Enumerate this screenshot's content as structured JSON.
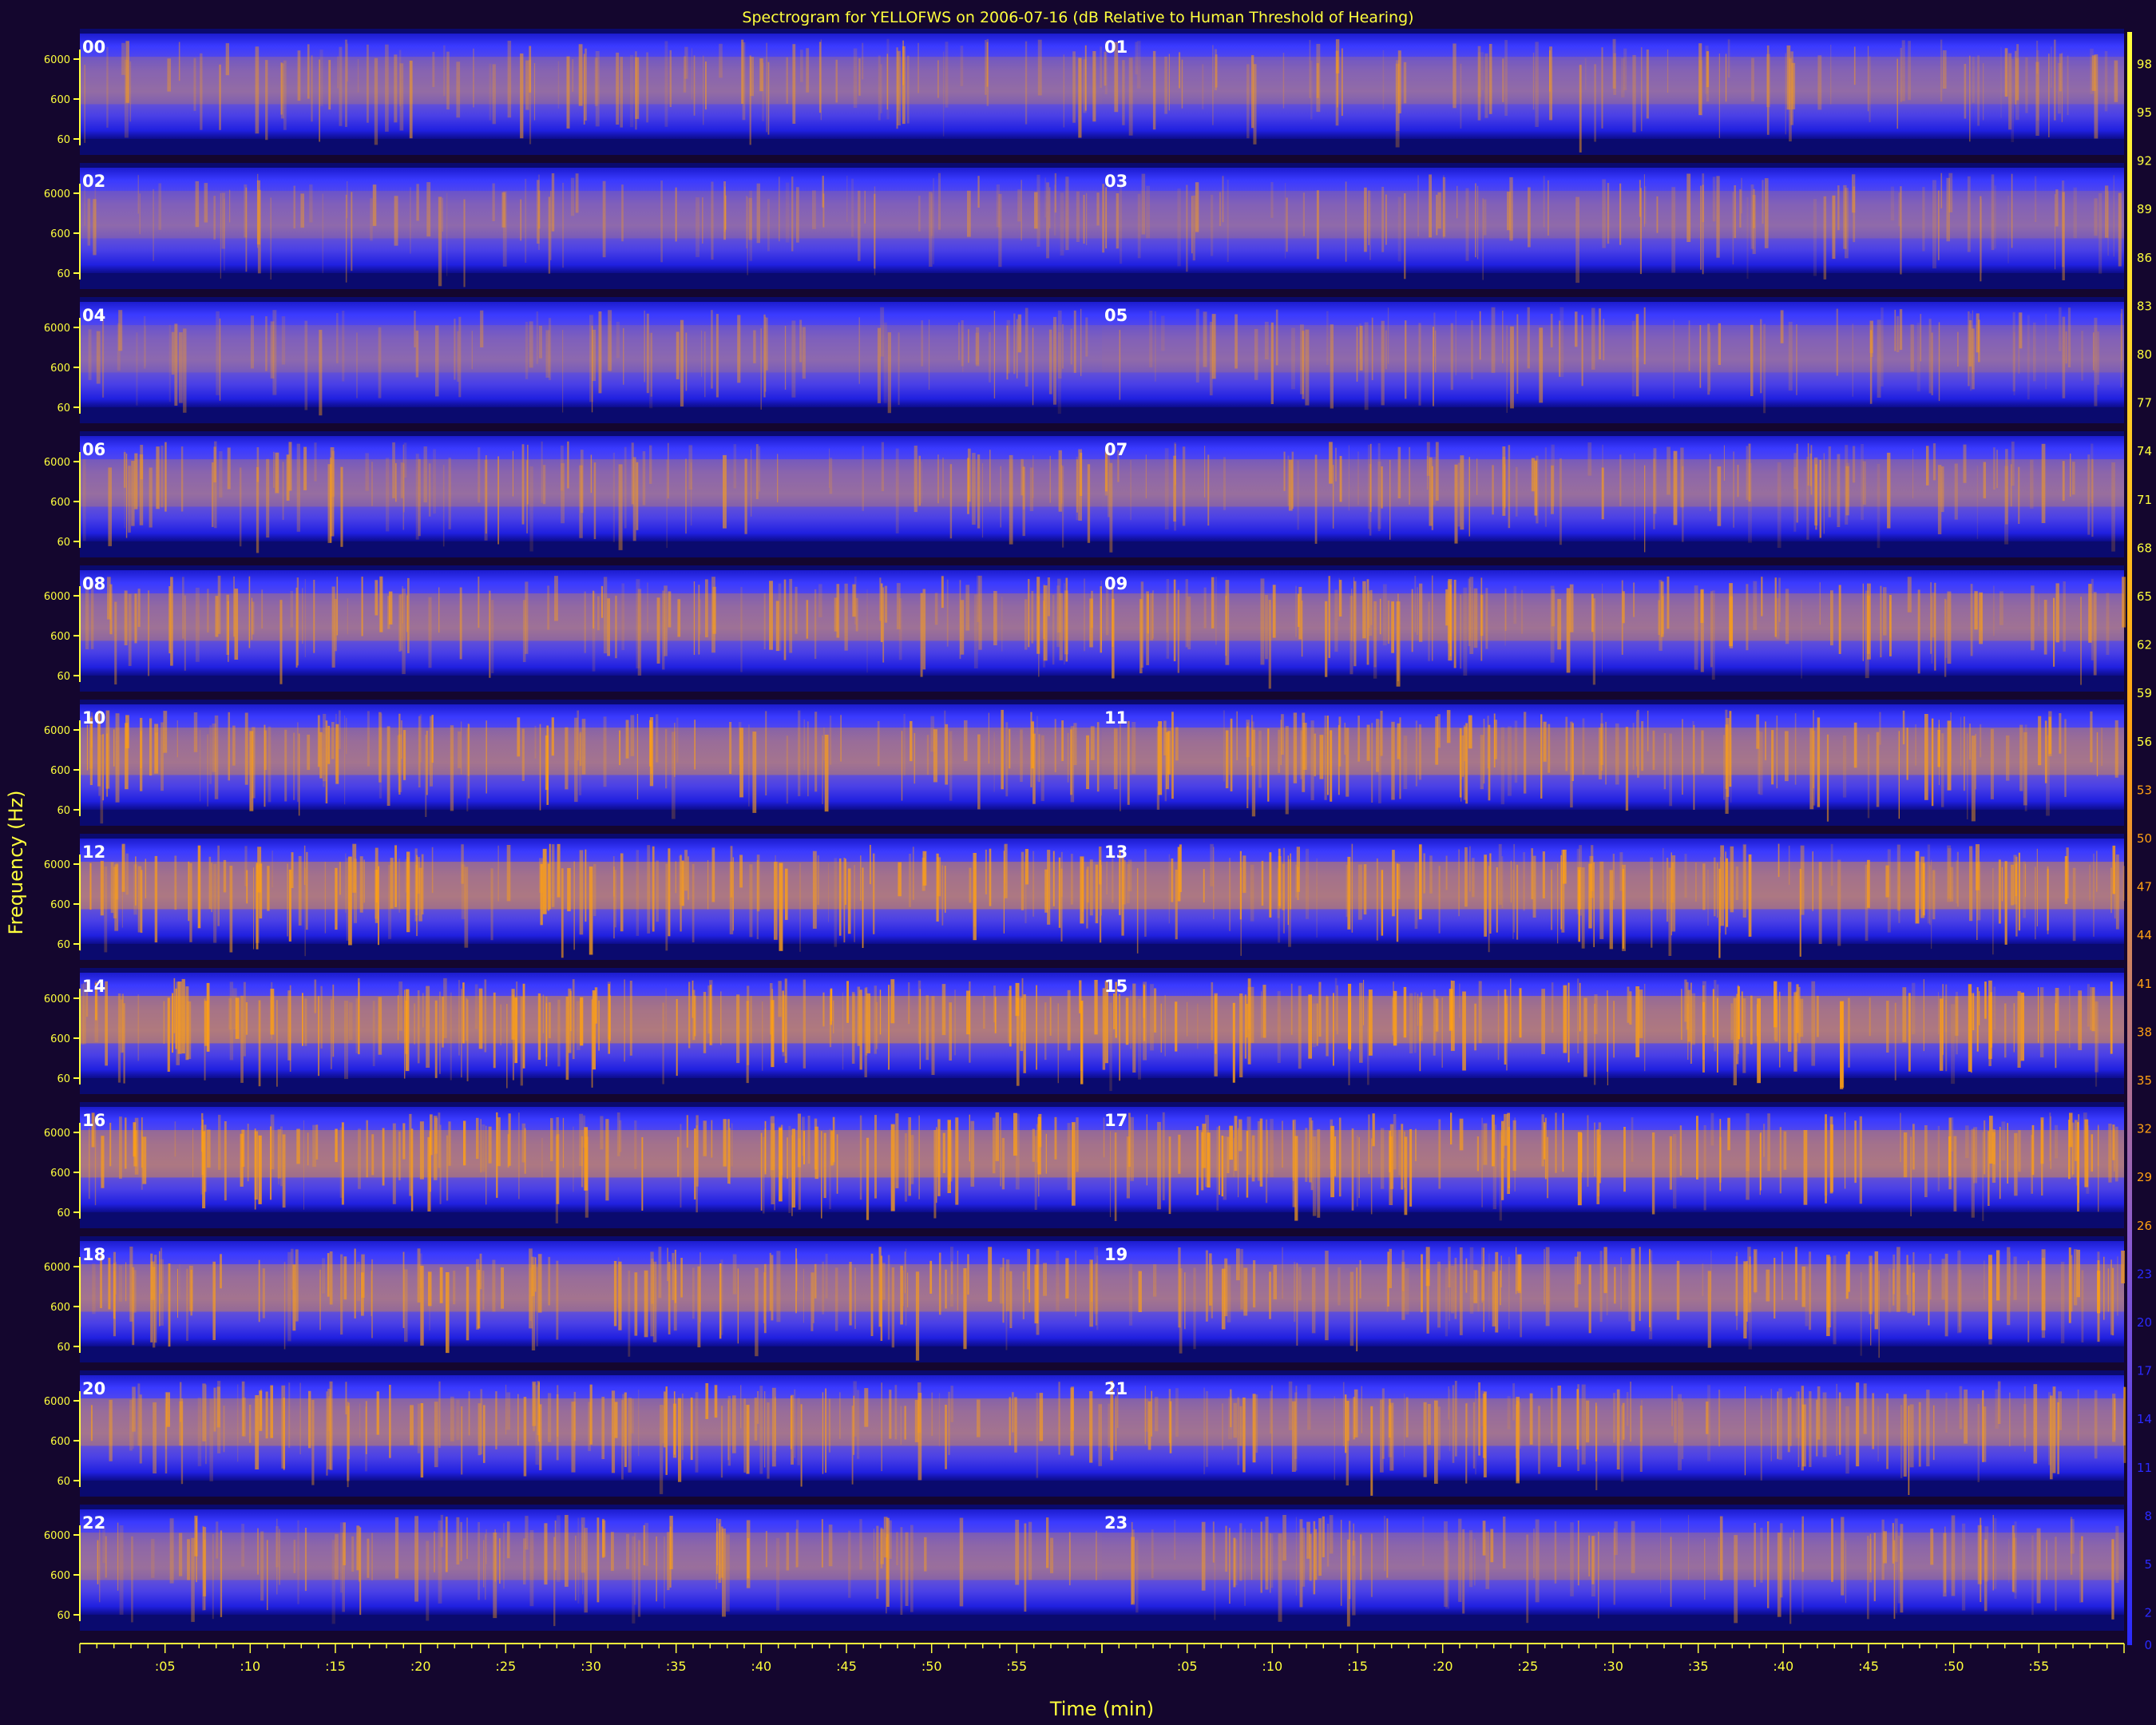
{
  "chart_data": {
    "type": "heatmap",
    "title": "Spectrogram for YELLOFWS on 2006-07-16 (dB Relative to Human Threshold of Hearing)",
    "xlabel": "Time (min)",
    "ylabel": "Frequency (Hz)",
    "rows": [
      {
        "label": "00",
        "intensity": 0.35
      },
      {
        "label": "01",
        "intensity": 0.33
      },
      {
        "label": "02",
        "intensity": 0.28
      },
      {
        "label": "03",
        "intensity": 0.3
      },
      {
        "label": "04",
        "intensity": 0.26
      },
      {
        "label": "05",
        "intensity": 0.3
      },
      {
        "label": "06",
        "intensity": 0.4
      },
      {
        "label": "07",
        "intensity": 0.42
      },
      {
        "label": "08",
        "intensity": 0.5
      },
      {
        "label": "09",
        "intensity": 0.52
      },
      {
        "label": "10",
        "intensity": 0.58
      },
      {
        "label": "11",
        "intensity": 0.62
      },
      {
        "label": "12",
        "intensity": 0.7
      },
      {
        "label": "13",
        "intensity": 0.7
      },
      {
        "label": "14",
        "intensity": 0.74
      },
      {
        "label": "15",
        "intensity": 0.72
      },
      {
        "label": "16",
        "intensity": 0.7
      },
      {
        "label": "17",
        "intensity": 0.7
      },
      {
        "label": "18",
        "intensity": 0.58
      },
      {
        "label": "19",
        "intensity": 0.56
      },
      {
        "label": "20",
        "intensity": 0.58
      },
      {
        "label": "21",
        "intensity": 0.54
      },
      {
        "label": "22",
        "intensity": 0.44
      },
      {
        "label": "23",
        "intensity": 0.42
      }
    ],
    "y_ticks": [
      "6000",
      "600",
      "60"
    ],
    "x_ticks": [
      ":05",
      ":10",
      ":15",
      ":20",
      ":25",
      ":30",
      ":35",
      ":40",
      ":45",
      ":50",
      ":55"
    ],
    "colorbar_ticks": [
      "98",
      "95",
      "92",
      "89",
      "86",
      "83",
      "80",
      "77",
      "74",
      "71",
      "68",
      "65",
      "62",
      "59",
      "56",
      "53",
      "50",
      "47",
      "44",
      "41",
      "38",
      "35",
      "32",
      "29",
      "26",
      "23",
      "20",
      "17",
      "14",
      "11",
      "8",
      "5",
      "2",
      "0"
    ],
    "colorbar_range": [
      0,
      100
    ],
    "colors": {
      "background": "#14062e",
      "low": "#0a0a6e",
      "mid": "#2a2aff",
      "high": "#ffa012",
      "label": "#ffff3c",
      "hour_label": "#ffffff"
    }
  }
}
